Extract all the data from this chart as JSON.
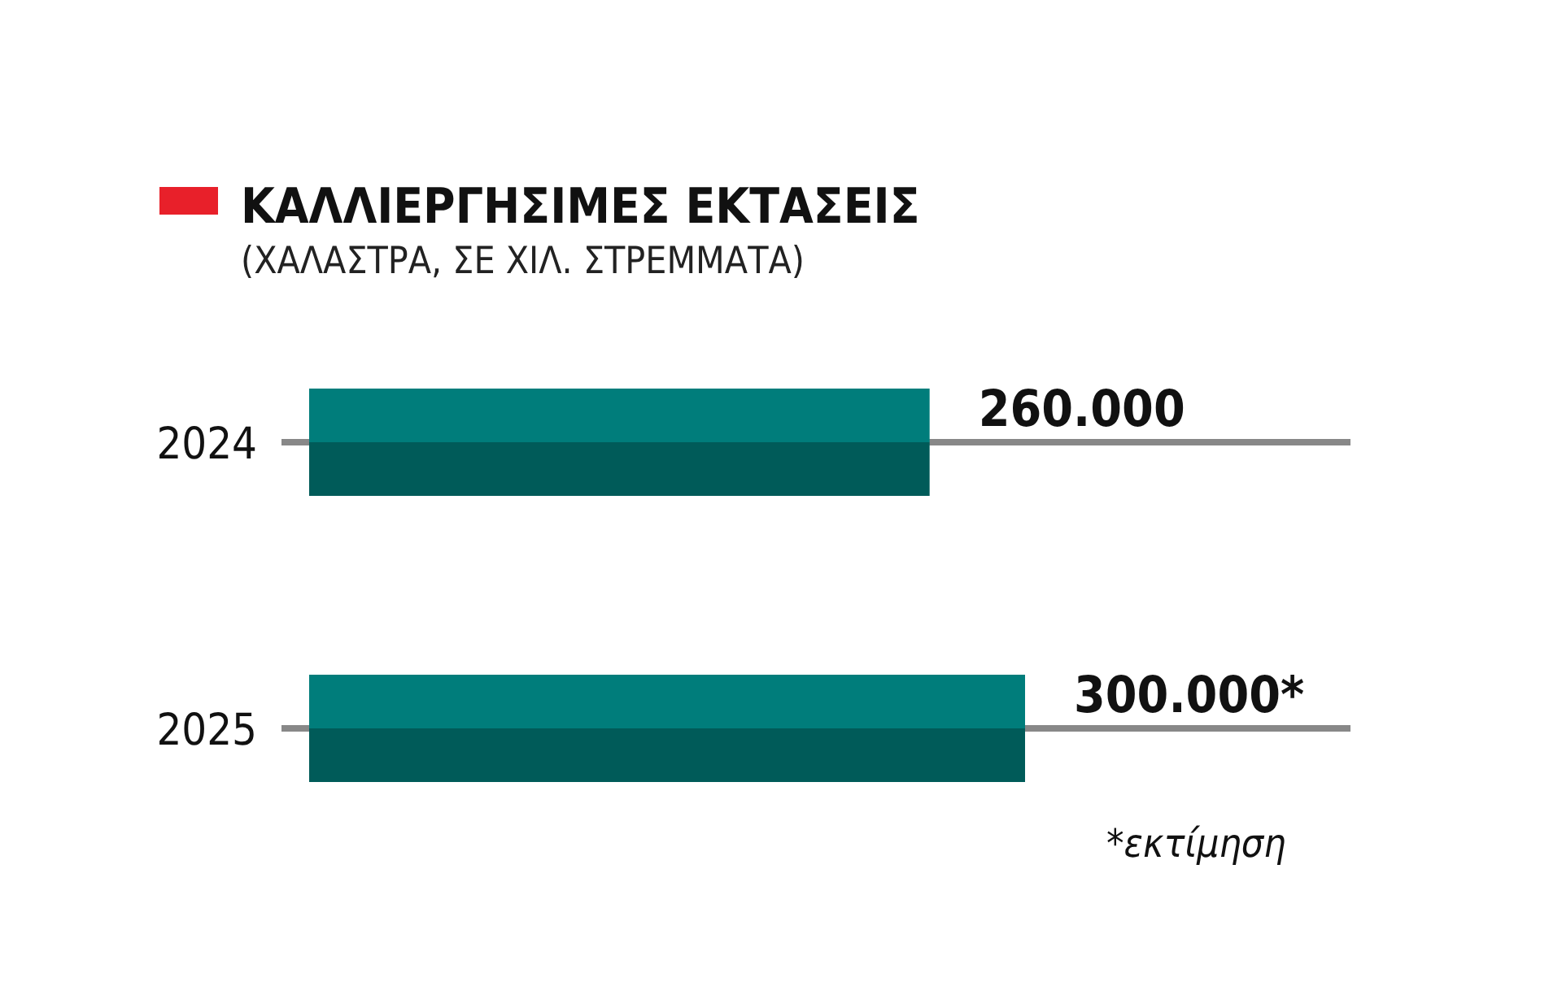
{
  "chart_data": {
    "type": "bar",
    "orientation": "horizontal",
    "title": "ΚΑΛΛΙΕΡΓΗΣΙΜΕΣ ΕΚΤΑΣΕΙΣ",
    "subtitle": "(ΧΑΛΑΣΤΡΑ, ΣΕ ΧΙΛ. ΣΤΡΕΜΜΑΤΑ)",
    "categories": [
      "2024",
      "2025"
    ],
    "values": [
      260000,
      300000
    ],
    "value_labels": [
      "260.000",
      "300.000*"
    ],
    "color": "#007d7b",
    "annotations": [
      "*εκτίμηση"
    ]
  }
}
